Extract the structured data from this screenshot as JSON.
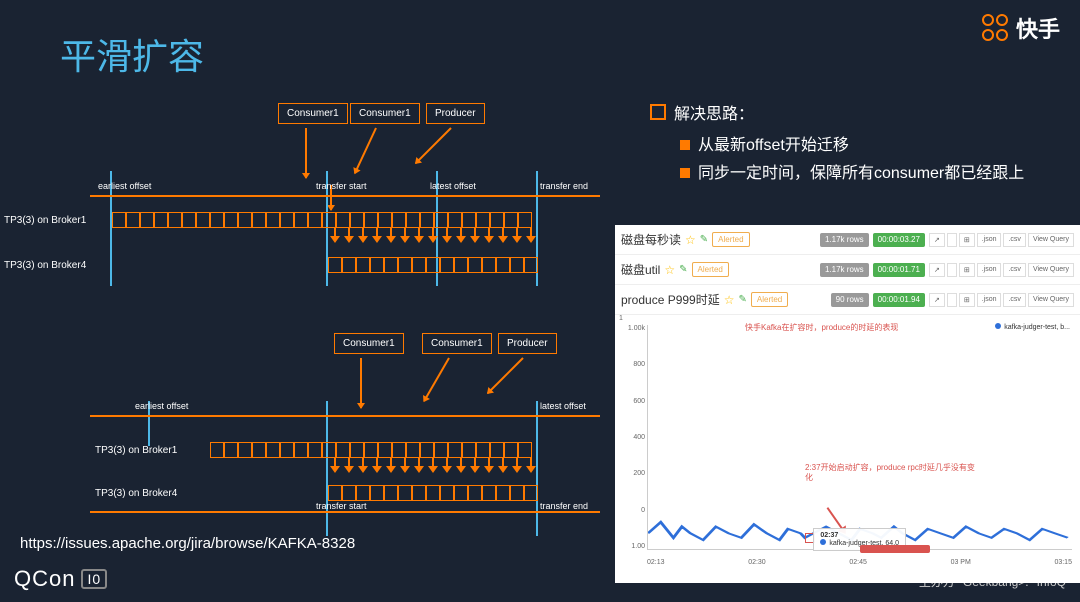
{
  "title": "平滑扩容",
  "logo_text": "快手",
  "solution": {
    "header": "解决思路：",
    "items": [
      "从最新offset开始迁移",
      "同步一定时间，保障所有consumer都已经跟上"
    ]
  },
  "diagram": {
    "consumer": "Consumer1",
    "producer": "Producer",
    "earliest": "earliest offset",
    "transfer_start": "transfer start",
    "latest": "latest offset",
    "transfer_end": "transfer end",
    "tp1": "TP3(3) on Broker1",
    "tp2": "TP3(3) on Broker4"
  },
  "url": "https://issues.apache.org/jira/browse/KAFKA-8328",
  "footer": {
    "left": "QCon",
    "io": "I0",
    "right_label": "主办方",
    "geek": "Geekbang>.",
    "infoq": "InfoQ"
  },
  "chart": {
    "rows": [
      {
        "title": "磁盘每秒读",
        "b1": "1.17k rows",
        "b2": "00:00:03.27"
      },
      {
        "title": "磁盘util",
        "b1": "1.17k rows",
        "b2": "00:00:01.71"
      },
      {
        "title": "produce P999时延",
        "b1": "90 rows",
        "b2": "00:00:01.94"
      }
    ],
    "tools": [
      "↗",
      "</>",
      "⊞",
      ".json",
      ".csv",
      "View Query"
    ],
    "alerted": "Alerted",
    "note1": "快手Kafka在扩容时，produce的时延的表现",
    "note2": "2:37开始启动扩容，produce rpc时延几乎没有变化",
    "legend": "kafka-judger-test, b...",
    "tooltip_time": "02:37",
    "tooltip_series": "kafka-judger-test,",
    "tooltip_val": "64.0",
    "y_ticks": [
      "1.00k",
      "800",
      "600",
      "400",
      "200",
      "0",
      "1.00"
    ],
    "y_top": "1",
    "x_ticks": [
      "02:13",
      "02:30",
      "02:45",
      "03 PM",
      "03:15"
    ],
    "line_color": "#2e6fd9",
    "line_points": [
      [
        0,
        0.93
      ],
      [
        0.03,
        0.88
      ],
      [
        0.06,
        0.95
      ],
      [
        0.08,
        0.9
      ],
      [
        0.1,
        0.93
      ],
      [
        0.13,
        0.96
      ],
      [
        0.16,
        0.9
      ],
      [
        0.19,
        0.93
      ],
      [
        0.22,
        0.95
      ],
      [
        0.25,
        0.89
      ],
      [
        0.28,
        0.93
      ],
      [
        0.31,
        0.96
      ],
      [
        0.33,
        0.91
      ],
      [
        0.36,
        0.93
      ],
      [
        0.37,
        0.95
      ],
      [
        0.39,
        0.93
      ],
      [
        0.42,
        0.9
      ],
      [
        0.45,
        0.93
      ],
      [
        0.48,
        0.96
      ],
      [
        0.5,
        0.91
      ],
      [
        0.53,
        0.93
      ],
      [
        0.55,
        0.95
      ],
      [
        0.58,
        0.9
      ],
      [
        0.6,
        0.93
      ],
      [
        0.63,
        0.96
      ],
      [
        0.66,
        0.91
      ],
      [
        0.69,
        0.93
      ],
      [
        0.72,
        0.95
      ],
      [
        0.75,
        0.9
      ],
      [
        0.78,
        0.93
      ],
      [
        0.81,
        0.95
      ],
      [
        0.84,
        0.91
      ],
      [
        0.87,
        0.93
      ],
      [
        0.9,
        0.96
      ],
      [
        0.93,
        0.91
      ],
      [
        0.96,
        0.93
      ],
      [
        0.99,
        0.95
      ]
    ]
  }
}
